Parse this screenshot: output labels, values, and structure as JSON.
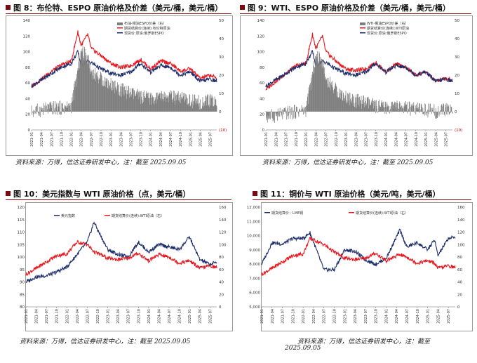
{
  "panels": [
    {
      "id": "p8",
      "title": "图 8：布伦特、ESPO 原油价格及价差（美元/桶，美元/桶）",
      "source": "资料来源：万得，信达证券研发中心，注：截至 2025.09.05",
      "legend": [
        "布油-俄油ESPO价差（右）",
        "期货结算价(连续):布伦特原油",
        "现货价:原油:俄罗斯ESPO"
      ],
      "xticks": [
        "2021-01",
        "2021-04",
        "2021-07",
        "2021-10",
        "2022-01",
        "2022-04",
        "2022-07",
        "2022-10",
        "2023-01",
        "2023-04",
        "2023-07",
        "2023-10",
        "2024-01",
        "2024-04",
        "2024-07",
        "2024-10",
        "2025-01",
        "2025-04",
        "2025-07"
      ],
      "yleft": [
        "0",
        "20",
        "40",
        "60",
        "80",
        "100",
        "120",
        "140"
      ],
      "yright": [
        "(10)",
        "0",
        "10",
        "20",
        "30",
        "40",
        "50"
      ]
    },
    {
      "id": "p9",
      "title": "图 9：WTI、ESPO 原油价格及价差（美元/桶，美元/桶）",
      "source": "资料来源：万得，信达证券研发中心，注：截至 2025.09.05",
      "legend": [
        "WTI-俄油ESPO价差（右）",
        "期货结算价(连续):WTI原油",
        "现货价:原油:俄罗斯ESPO"
      ],
      "xticks": [
        "2021-01",
        "2021-04",
        "2021-07",
        "2021-10",
        "2022-01",
        "2022-04",
        "2022-07",
        "2022-10",
        "2023-01",
        "2023-04",
        "2023-07",
        "2023-10",
        "2024-01",
        "2024-04",
        "2024-07",
        "2024-10",
        "2025-01",
        "2025-04",
        "2025-07"
      ],
      "yleft": [
        "0",
        "20",
        "40",
        "60",
        "80",
        "100",
        "120",
        "140"
      ],
      "yright": [
        "(10)",
        "0",
        "10",
        "20",
        "30",
        "40",
        "50"
      ]
    },
    {
      "id": "p10",
      "title": "图 10：美元指数与 WTI 原油价格（点，美元/桶）",
      "source": "资料来源：万得，信达证券研发中心，注：截至 2025.09.05",
      "legend": [
        "美元指数",
        "期货结算价(连续):WTI原油（右）"
      ],
      "xticks": [
        "2021-01",
        "2021-04",
        "2021-07",
        "2021-10",
        "2022-01",
        "2022-04",
        "2022-07",
        "2022-10",
        "2023-01",
        "2023-04",
        "2023-07",
        "2023-10",
        "2024-01",
        "2024-04",
        "2024-07",
        "2024-10",
        "2025-01",
        "2025-04",
        "2025-07"
      ],
      "yleft": [
        "80",
        "85",
        "90",
        "95",
        "100",
        "105",
        "110",
        "115",
        "120"
      ],
      "yright": [
        "0",
        "20",
        "40",
        "60",
        "80",
        "100",
        "120",
        "140",
        "160"
      ]
    },
    {
      "id": "p11",
      "title": "图 11：铜价与 WTI 原油价格（美元/吨，美元/桶）",
      "source": "资料来源：万得，信达证券研发中心，注：截至",
      "source2": "2025.09.05",
      "legend": [
        "期货结算价：LME铜",
        "期货结算价(连续):WTI原油（右）"
      ],
      "xticks": [
        "2021-01",
        "2021-04",
        "2021-07",
        "2021-10",
        "2022-01",
        "2022-04",
        "2022-07",
        "2022-10",
        "2023-01",
        "2023-04",
        "2023-07",
        "2023-10",
        "2024-01",
        "2024-04",
        "2024-07",
        "2024-10",
        "2025-01",
        "2025-04",
        "2025-07"
      ],
      "yleft": [
        "5,000",
        "6,000",
        "7,000",
        "8,000",
        "9,000",
        "10,000",
        "11,000",
        "12,000"
      ],
      "yright": [
        "0",
        "20",
        "40",
        "60",
        "80",
        "100",
        "120",
        "140",
        "160"
      ]
    }
  ],
  "chart_data": [
    {
      "type": "line",
      "panel": "p8",
      "x": [
        "2021-01",
        "2021-04",
        "2021-07",
        "2021-10",
        "2022-01",
        "2022-03",
        "2022-04",
        "2022-06",
        "2022-07",
        "2022-10",
        "2023-01",
        "2023-04",
        "2023-07",
        "2023-10",
        "2024-01",
        "2024-04",
        "2024-07",
        "2024-10",
        "2025-01",
        "2025-04",
        "2025-07",
        "2025-09"
      ],
      "series": [
        {
          "name": "期货结算价(连续):布伦特原油",
          "axis": "left",
          "values": [
            55,
            65,
            75,
            83,
            88,
            125,
            108,
            122,
            104,
            95,
            85,
            80,
            82,
            90,
            78,
            88,
            85,
            75,
            78,
            66,
            70,
            66
          ]
        },
        {
          "name": "现货价:原油:俄罗斯ESPO",
          "axis": "left",
          "values": [
            56,
            64,
            72,
            80,
            85,
            100,
            82,
            88,
            86,
            78,
            72,
            70,
            74,
            85,
            74,
            82,
            80,
            70,
            74,
            62,
            65,
            62
          ]
        },
        {
          "name": "布油-俄油ESPO价差（右）",
          "axis": "right",
          "type": "bar",
          "values": [
            0,
            1,
            2,
            2,
            3,
            22,
            33,
            30,
            22,
            18,
            15,
            12,
            10,
            8,
            7,
            8,
            8,
            7,
            6,
            5,
            6,
            5
          ]
        }
      ],
      "ylim_left": [
        0,
        140
      ],
      "ylim_right": [
        -10,
        50
      ]
    },
    {
      "type": "line",
      "panel": "p9",
      "x": [
        "2021-01",
        "2021-04",
        "2021-07",
        "2021-10",
        "2022-01",
        "2022-03",
        "2022-04",
        "2022-06",
        "2022-07",
        "2022-10",
        "2023-01",
        "2023-04",
        "2023-07",
        "2023-10",
        "2024-01",
        "2024-04",
        "2024-07",
        "2024-10",
        "2025-01",
        "2025-04",
        "2025-07",
        "2025-09"
      ],
      "series": [
        {
          "name": "期货结算价(连续):WTI原油",
          "axis": "left",
          "values": [
            52,
            62,
            72,
            82,
            85,
            122,
            104,
            120,
            100,
            88,
            78,
            76,
            78,
            86,
            74,
            84,
            80,
            70,
            74,
            62,
            66,
            63
          ]
        },
        {
          "name": "现货价:原油:俄罗斯ESPO",
          "axis": "left",
          "values": [
            56,
            64,
            72,
            80,
            85,
            100,
            82,
            88,
            86,
            78,
            72,
            70,
            74,
            85,
            74,
            82,
            80,
            70,
            74,
            62,
            65,
            62
          ]
        },
        {
          "name": "WTI-俄油ESPO价差（右）",
          "axis": "right",
          "type": "bar",
          "values": [
            -3,
            -2,
            -1,
            0,
            1,
            20,
            30,
            28,
            18,
            12,
            8,
            6,
            5,
            3,
            2,
            3,
            2,
            1,
            1,
            0,
            1,
            1
          ]
        }
      ],
      "ylim_left": [
        0,
        140
      ],
      "ylim_right": [
        -10,
        50
      ]
    },
    {
      "type": "line",
      "panel": "p10",
      "x": [
        "2021-01",
        "2021-04",
        "2021-07",
        "2021-10",
        "2022-01",
        "2022-04",
        "2022-07",
        "2022-09",
        "2022-10",
        "2023-01",
        "2023-04",
        "2023-07",
        "2023-10",
        "2024-01",
        "2024-04",
        "2024-07",
        "2024-10",
        "2025-01",
        "2025-04",
        "2025-07",
        "2025-09"
      ],
      "series": [
        {
          "name": "美元指数",
          "axis": "left",
          "values": [
            90,
            92,
            92.5,
            94,
            96,
            101,
            106,
            114,
            111,
            103,
            101,
            100,
            106,
            102,
            105,
            104,
            103,
            108,
            99,
            97,
            98
          ]
        },
        {
          "name": "期货结算价(连续):WTI原油（右）",
          "axis": "right",
          "values": [
            52,
            62,
            72,
            82,
            85,
            104,
            100,
            88,
            86,
            78,
            76,
            78,
            86,
            74,
            84,
            80,
            70,
            74,
            62,
            66,
            63
          ]
        }
      ],
      "ylim_left": [
        80,
        120
      ],
      "ylim_right": [
        0,
        160
      ]
    },
    {
      "type": "line",
      "panel": "p11",
      "x": [
        "2021-01",
        "2021-04",
        "2021-07",
        "2021-10",
        "2022-01",
        "2022-03",
        "2022-07",
        "2022-10",
        "2023-01",
        "2023-04",
        "2023-07",
        "2023-10",
        "2024-01",
        "2024-05",
        "2024-07",
        "2024-10",
        "2025-01",
        "2025-03",
        "2025-04",
        "2025-07",
        "2025-09"
      ],
      "series": [
        {
          "name": "期货结算价：LME铜",
          "axis": "left",
          "values": [
            8000,
            9500,
            9400,
            9800,
            9800,
            10200,
            7600,
            7600,
            9000,
            8900,
            8300,
            8000,
            8400,
            10400,
            9200,
            9500,
            9000,
            9700,
            8600,
            9800,
            9900
          ]
        },
        {
          "name": "期货结算价(连续):WTI原油（右）",
          "axis": "right",
          "values": [
            52,
            62,
            72,
            82,
            85,
            110,
            100,
            88,
            78,
            76,
            78,
            86,
            74,
            84,
            80,
            70,
            74,
            70,
            62,
            66,
            63
          ]
        }
      ],
      "ylim_left": [
        5000,
        12000
      ],
      "ylim_right": [
        0,
        160
      ]
    }
  ],
  "colors": {
    "red": "#e8171e",
    "navy": "#1d2d6b",
    "bar": "#7f7f7f",
    "title_square": "#7a0a10",
    "rule": "#8b1a1a"
  }
}
